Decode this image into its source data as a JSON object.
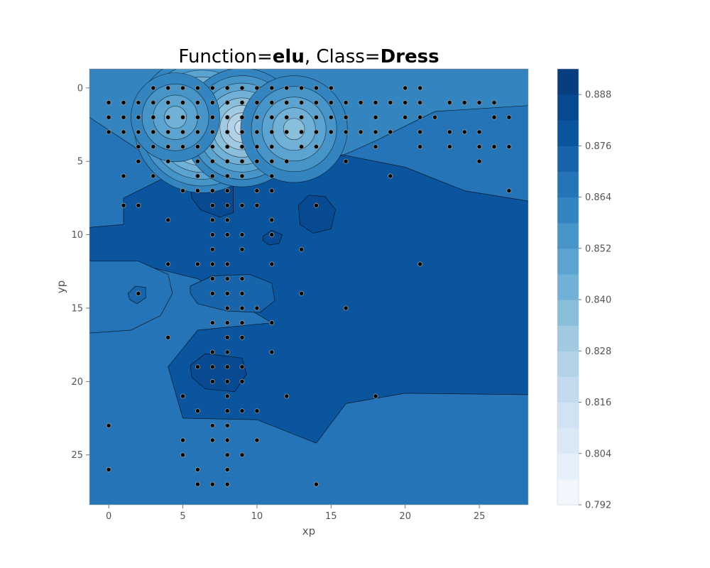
{
  "chart_data": {
    "type": "contour",
    "title_parts": [
      {
        "text": "Function=",
        "bold": false
      },
      {
        "text": "elu",
        "bold": true
      },
      {
        "text": ", Class=",
        "bold": false
      },
      {
        "text": "Dress",
        "bold": true
      }
    ],
    "xlabel": "xp",
    "ylabel": "yp",
    "xlim": [
      -1.3,
      28.3
    ],
    "ylim": [
      28.4,
      -1.3
    ],
    "xticks": [
      0,
      5,
      10,
      15,
      20,
      25
    ],
    "yticks": [
      0,
      5,
      10,
      15,
      20,
      25
    ],
    "colormap": "Blues",
    "colorbar": {
      "min": 0.792,
      "max": 0.894,
      "levels": [
        0.792,
        0.798,
        0.804,
        0.81,
        0.816,
        0.822,
        0.828,
        0.834,
        0.84,
        0.846,
        0.852,
        0.858,
        0.864,
        0.87,
        0.876,
        0.882,
        0.888,
        0.894
      ],
      "tick_labels": [
        "0.792",
        "0.804",
        "0.816",
        "0.828",
        "0.840",
        "0.852",
        "0.864",
        "0.876",
        "0.888"
      ],
      "colors": [
        "#f1f7fd",
        "#e6f0fa",
        "#dbe9f6",
        "#d0e2f3",
        "#c3daee",
        "#b2d2e8",
        "#a0c9e2",
        "#8abfdc",
        "#72b1d7",
        "#5ba3d0",
        "#4794c8",
        "#3484bf",
        "#2474b7",
        "#1764ab",
        "#0b559f",
        "#084a91",
        "#083d7f"
      ]
    },
    "background_value": 0.868,
    "regions": [
      {
        "name": "upper-plateau",
        "points": [
          [
            -1.3,
            -1.3
          ],
          [
            28.3,
            -1.3
          ],
          [
            28.3,
            1.2
          ],
          [
            22,
            1.6
          ],
          [
            18,
            3.6
          ],
          [
            16,
            4.5
          ],
          [
            14,
            5.0
          ],
          [
            11,
            5.2
          ],
          [
            8,
            5.0
          ],
          [
            5,
            5.0
          ],
          [
            2,
            4.2
          ],
          [
            -1.3,
            2.0
          ]
        ],
        "value": 0.858
      },
      {
        "name": "right-band",
        "points": [
          [
            1,
            7.5
          ],
          [
            4,
            6.0
          ],
          [
            8,
            5.4
          ],
          [
            12,
            5.0
          ],
          [
            16,
            4.6
          ],
          [
            20,
            5.4
          ],
          [
            24,
            7.0
          ],
          [
            28.3,
            7.7
          ],
          [
            28.3,
            20.9
          ],
          [
            20,
            20.8
          ],
          [
            16,
            21.5
          ],
          [
            14,
            24.2
          ],
          [
            10,
            22.6
          ],
          [
            5,
            22.5
          ],
          [
            4,
            19.0
          ],
          [
            6,
            16.5
          ],
          [
            11,
            16.0
          ],
          [
            6,
            13.0
          ],
          [
            2,
            12.0
          ],
          [
            -1.3,
            12.0
          ],
          [
            -1.3,
            9.5
          ],
          [
            1,
            9.3
          ]
        ],
        "value": 0.876
      },
      {
        "name": "left-bulge",
        "points": [
          [
            -1.3,
            11.8
          ],
          [
            2.0,
            11.8
          ],
          [
            4.0,
            12.7
          ],
          [
            4.3,
            14.0
          ],
          [
            3.5,
            15.5
          ],
          [
            1.5,
            16.5
          ],
          [
            -1.3,
            16.7
          ]
        ],
        "value": 0.864
      },
      {
        "name": "center-bump",
        "points": [
          [
            5.5,
            13.5
          ],
          [
            7.0,
            12.8
          ],
          [
            9.5,
            12.7
          ],
          [
            11.0,
            13.3
          ],
          [
            11.2,
            14.5
          ],
          [
            10.2,
            15.3
          ],
          [
            8.0,
            15.2
          ],
          [
            6.0,
            14.7
          ],
          [
            5.5,
            14.0
          ]
        ],
        "value": 0.87
      },
      {
        "name": "dark-blob-upper",
        "points": [
          [
            5.5,
            6.5
          ],
          [
            7.0,
            5.7
          ],
          [
            8.4,
            6.0
          ],
          [
            8.4,
            8.5
          ],
          [
            7.5,
            8.8
          ],
          [
            6.2,
            8.3
          ],
          [
            5.6,
            7.5
          ]
        ],
        "value": 0.882
      },
      {
        "name": "dark-blob-right",
        "points": [
          [
            12.8,
            8.0
          ],
          [
            13.5,
            7.3
          ],
          [
            14.6,
            7.4
          ],
          [
            15.3,
            8.3
          ],
          [
            15.0,
            9.6
          ],
          [
            13.8,
            9.9
          ],
          [
            12.9,
            9.3
          ]
        ],
        "value": 0.882
      },
      {
        "name": "dark-blob-lower",
        "points": [
          [
            5.5,
            18.9
          ],
          [
            6.5,
            18.1
          ],
          [
            9.0,
            18.4
          ],
          [
            9.3,
            19.5
          ],
          [
            8.5,
            20.7
          ],
          [
            6.5,
            20.5
          ],
          [
            5.6,
            19.7
          ]
        ],
        "value": 0.882
      },
      {
        "name": "small-blob",
        "points": [
          [
            10.4,
            10.1
          ],
          [
            11.0,
            9.7
          ],
          [
            11.7,
            10.0
          ],
          [
            11.5,
            10.6
          ],
          [
            10.8,
            10.7
          ],
          [
            10.4,
            10.4
          ]
        ],
        "value": 0.882
      },
      {
        "name": "left-small-bump",
        "points": [
          [
            1.3,
            14.0
          ],
          [
            1.8,
            13.5
          ],
          [
            2.5,
            13.6
          ],
          [
            2.5,
            14.3
          ],
          [
            1.9,
            14.7
          ],
          [
            1.4,
            14.4
          ]
        ],
        "value": 0.87
      }
    ],
    "low_centers": [
      {
        "x": 6.3,
        "y": 2.5,
        "value": 0.805,
        "rx": 4.6,
        "ry": 2.0
      },
      {
        "x": 9.0,
        "y": 2.7,
        "value": 0.815,
        "rx": 4.0,
        "ry": 2.0
      },
      {
        "x": 12.5,
        "y": 2.8,
        "value": 0.832,
        "rx": 3.6,
        "ry": 1.9
      },
      {
        "x": 4.5,
        "y": 2.0,
        "value": 0.84,
        "rx": 3.0,
        "ry": 1.7
      }
    ],
    "scatter": {
      "x": [
        3,
        4,
        5,
        6,
        7,
        8,
        9,
        10,
        11,
        12,
        13,
        14,
        15,
        20,
        21,
        0,
        1,
        2,
        3,
        4,
        5,
        6,
        7,
        8,
        9,
        10,
        11,
        12,
        13,
        14,
        15,
        16,
        17,
        18,
        19,
        20,
        21,
        23,
        24,
        25,
        26,
        0,
        1,
        2,
        3,
        4,
        5,
        6,
        7,
        8,
        9,
        10,
        11,
        12,
        13,
        14,
        15,
        16,
        18,
        20,
        21,
        22,
        26,
        27,
        0,
        1,
        2,
        3,
        4,
        5,
        6,
        7,
        8,
        9,
        10,
        11,
        12,
        13,
        14,
        15,
        16,
        17,
        18,
        19,
        21,
        23,
        24,
        25,
        2,
        3,
        4,
        5,
        6,
        7,
        8,
        9,
        10,
        11,
        13,
        14,
        18,
        21,
        23,
        25,
        26,
        27,
        2,
        4,
        6,
        7,
        8,
        9,
        10,
        11,
        12,
        16,
        25,
        1,
        3,
        6,
        7,
        8,
        9,
        11,
        19,
        5,
        6,
        7,
        8,
        10,
        11,
        27,
        1,
        2,
        7,
        8,
        9,
        10,
        14,
        4,
        7,
        8,
        11,
        7,
        8,
        9,
        11,
        7,
        9,
        13,
        4,
        6,
        7,
        8,
        11,
        21,
        7,
        8,
        9,
        2,
        7,
        8,
        9,
        13,
        8,
        9,
        10,
        16,
        7,
        8,
        9,
        11,
        4,
        8,
        9,
        7,
        8,
        11,
        6,
        7,
        8,
        9,
        7,
        8,
        9,
        5,
        8,
        12,
        18,
        6,
        8,
        9,
        10,
        0,
        7,
        8,
        5,
        7,
        8,
        10,
        5,
        8,
        9,
        0,
        6,
        8,
        6,
        7,
        8,
        14
      ],
      "y": [
        0,
        0,
        0,
        0,
        0,
        0,
        0,
        0,
        0,
        0,
        0,
        0,
        0,
        0,
        0,
        1,
        1,
        1,
        1,
        1,
        1,
        1,
        1,
        1,
        1,
        1,
        1,
        1,
        1,
        1,
        1,
        1,
        1,
        1,
        1,
        1,
        1,
        1,
        1,
        1,
        1,
        2,
        2,
        2,
        2,
        2,
        2,
        2,
        2,
        2,
        2,
        2,
        2,
        2,
        2,
        2,
        2,
        2,
        2,
        2,
        2,
        2,
        2,
        2,
        3,
        3,
        3,
        3,
        3,
        3,
        3,
        3,
        3,
        3,
        3,
        3,
        3,
        3,
        3,
        3,
        3,
        3,
        3,
        3,
        3,
        3,
        3,
        3,
        4,
        4,
        4,
        4,
        4,
        4,
        4,
        4,
        4,
        4,
        4,
        4,
        4,
        4,
        4,
        4,
        4,
        4,
        5,
        5,
        5,
        5,
        5,
        5,
        5,
        5,
        5,
        5,
        5,
        6,
        6,
        6,
        6,
        6,
        6,
        6,
        6,
        7,
        7,
        7,
        7,
        7,
        7,
        7,
        8,
        8,
        8,
        8,
        8,
        8,
        8,
        9,
        9,
        9,
        9,
        10,
        10,
        10,
        10,
        11,
        11,
        11,
        12,
        12,
        12,
        12,
        12,
        12,
        13,
        13,
        13,
        14,
        14,
        14,
        14,
        14,
        15,
        15,
        15,
        15,
        16,
        16,
        16,
        16,
        17,
        17,
        17,
        18,
        18,
        18,
        19,
        19,
        19,
        19,
        20,
        20,
        20,
        21,
        21,
        21,
        21,
        22,
        22,
        22,
        22,
        23,
        23,
        23,
        24,
        24,
        24,
        24,
        25,
        25,
        25,
        26,
        26,
        26,
        27,
        27,
        27,
        27
      ]
    }
  }
}
